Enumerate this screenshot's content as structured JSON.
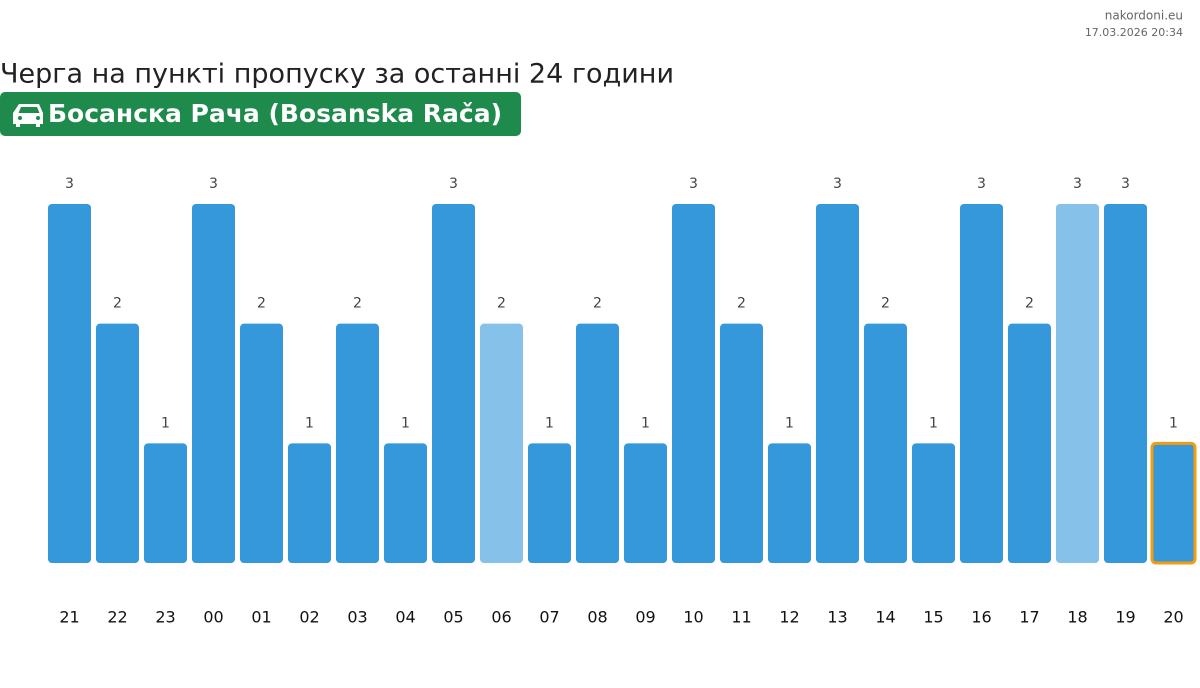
{
  "chart_data": {
    "type": "bar",
    "site": "nakordoni.eu",
    "timestamp": "17.03.2026 20:34",
    "title": "Черга на пункті пропуску за останні 24 години",
    "subtitle": "Босанска Рача (Bosanska Rača)",
    "categories": [
      "21",
      "22",
      "23",
      "00",
      "01",
      "02",
      "03",
      "04",
      "05",
      "06",
      "07",
      "08",
      "09",
      "10",
      "11",
      "12",
      "13",
      "14",
      "15",
      "16",
      "17",
      "18",
      "19",
      "20"
    ],
    "values": [
      3,
      2,
      1,
      3,
      2,
      1,
      2,
      1,
      3,
      2,
      1,
      2,
      1,
      3,
      2,
      1,
      3,
      2,
      1,
      3,
      2,
      3,
      3,
      1
    ],
    "colors": [
      "#3498db",
      "#3498db",
      "#3498db",
      "#3498db",
      "#3498db",
      "#3498db",
      "#3498db",
      "#3498db",
      "#3498db",
      "#85c1e9",
      "#3498db",
      "#3498db",
      "#3498db",
      "#3498db",
      "#3498db",
      "#3498db",
      "#3498db",
      "#3498db",
      "#3498db",
      "#3498db",
      "#3498db",
      "#85c1e9",
      "#3498db",
      "#3498db"
    ],
    "edgecolors": [
      null,
      null,
      null,
      null,
      null,
      null,
      null,
      null,
      null,
      null,
      null,
      null,
      null,
      null,
      null,
      null,
      null,
      null,
      null,
      null,
      null,
      null,
      null,
      "#f39c12"
    ]
  }
}
